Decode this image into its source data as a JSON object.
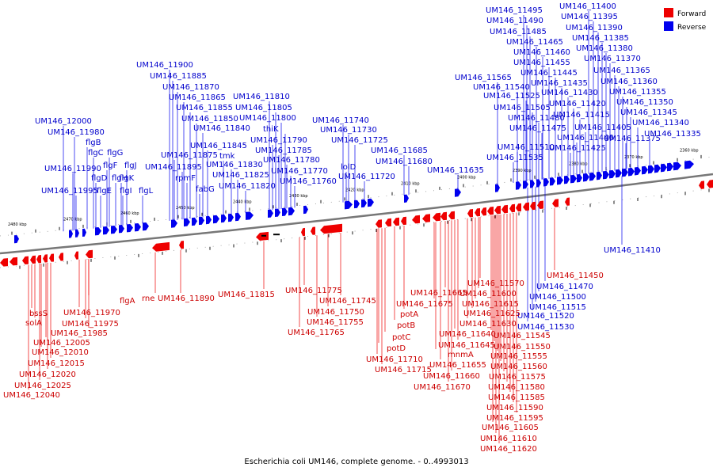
{
  "caption": "Escherichia coli UM146, complete genome. - 0..4993013",
  "legend": [
    {
      "label": "Forward",
      "color": "#ee0000"
    },
    {
      "label": "Reverse",
      "color": "#0000ee"
    }
  ],
  "colors": {
    "forward": "#ee0000",
    "reverse": "#0000ee",
    "forward_text": "#cc0000",
    "reverse_text": "#0000cc",
    "axis": "#777777"
  },
  "ticks": [
    "2480 kbp",
    "2470 kbp",
    "2460 kbp",
    "2450 kbp",
    "2440 kbp",
    "2430 kbp",
    "2420 kbp",
    "2410 kbp",
    "2400 kbp",
    "2390 kbp",
    "2380 kbp",
    "2370 kbp",
    "2360 kbp"
  ],
  "reverse_labels": [
    "UM146_12000",
    "UM146_11980",
    "flgB",
    "flgC",
    "flgG",
    "flgF",
    "flgJ",
    "flgH",
    "flgK",
    "flgD",
    "flgE",
    "flgI",
    "flgL",
    "UM146_11990",
    "UM146_11995",
    "UM146_11900",
    "UM146_11885",
    "UM146_11870",
    "UM146_11865",
    "UM146_11855",
    "UM146_11850",
    "UM146_11840",
    "UM146_11845",
    "UM146_11875",
    "tmk",
    "UM146_11895",
    "rpmF",
    "UM146_11830",
    "fabG",
    "UM146_11825",
    "UM146_11820",
    "UM146_11810",
    "UM146_11805",
    "UM146_11800",
    "thiK",
    "UM146_11790",
    "UM146_11785",
    "UM146_11780",
    "UM146_11770",
    "UM146_11760",
    "UM146_11740",
    "UM146_11730",
    "UM146_11725",
    "lolD",
    "UM146_11720",
    "UM146_11685",
    "UM146_11680",
    "UM146_11635",
    "UM146_11565",
    "UM146_11540",
    "UM146_11525",
    "UM146_11505",
    "UM146_11480",
    "UM146_11475",
    "UM146_11510",
    "UM146_11535",
    "UM146_11495",
    "UM146_11490",
    "UM146_11485",
    "UM146_11465",
    "UM146_11460",
    "UM146_11455",
    "UM146_11445",
    "UM146_11435",
    "UM146_11430",
    "UM146_11420",
    "UM146_11415",
    "UM146_11405",
    "UM146_11440",
    "UM146_11425",
    "UM146_11400",
    "UM146_11395",
    "UM146_11390",
    "UM146_11385",
    "UM146_11380",
    "UM146_11370",
    "UM146_11365",
    "UM146_11360",
    "UM146_11355",
    "UM146_11350",
    "UM146_11345",
    "UM146_11340",
    "UM146_11375",
    "UM146_11335",
    "UM146_11410",
    "UM146_11470",
    "UM146_11500",
    "UM146_11515",
    "UM146_11520",
    "UM146_11530"
  ],
  "forward_labels": [
    "bssS",
    "solA",
    "UM146_11970",
    "UM146_11975",
    "UM146_11985",
    "UM146_12005",
    "UM146_12010",
    "UM146_12015",
    "UM146_12020",
    "UM146_12025",
    "UM146_12040",
    "flgA",
    "rne",
    "UM146_11890",
    "UM146_11815",
    "UM146_11775",
    "UM146_11745",
    "UM146_11750",
    "UM146_11755",
    "UM146_11765",
    "UM146_11665",
    "UM146_11675",
    "potA",
    "potB",
    "potC",
    "potD",
    "UM146_11710",
    "UM146_11715",
    "mnmA",
    "UM146_11655",
    "UM146_11660",
    "UM146_11670",
    "UM146_11640",
    "UM146_11645",
    "UM146_11630",
    "UM146_11625",
    "UM146_11615",
    "UM146_11600",
    "UM146_11570",
    "UM146_11450",
    "UM146_11545",
    "UM146_11550",
    "UM146_11555",
    "UM146_11560",
    "UM146_11575",
    "UM146_11580",
    "UM146_11585",
    "UM146_11590",
    "UM146_11595",
    "UM146_11605",
    "UM146_11610",
    "UM146_11620"
  ]
}
